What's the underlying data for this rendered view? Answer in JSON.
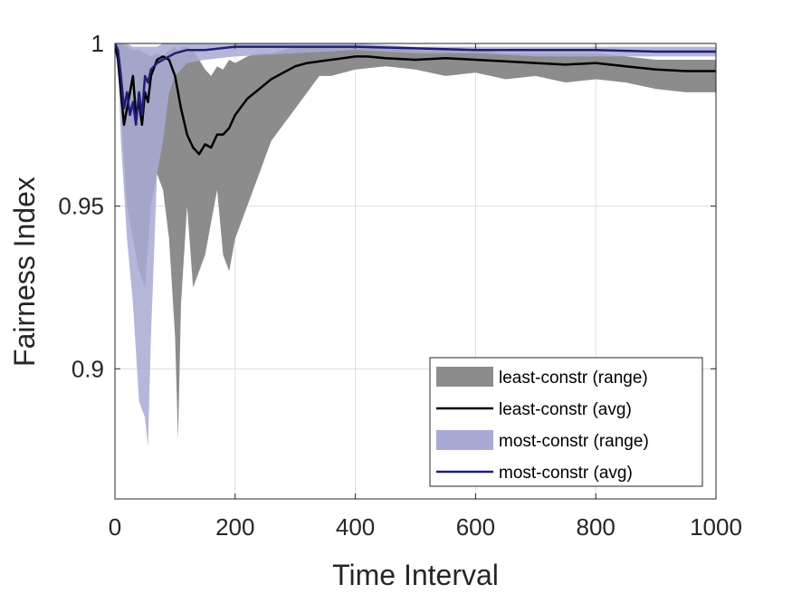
{
  "chart_data": {
    "type": "area",
    "xlabel": "Time Interval",
    "ylabel": "Fairness Index",
    "xlim": [
      0,
      1000
    ],
    "ylim": [
      0.86,
      1.0
    ],
    "xticks": [
      0,
      200,
      400,
      600,
      800,
      1000
    ],
    "xtick_labels": [
      "0",
      "200",
      "400",
      "600",
      "800",
      "1000"
    ],
    "yticks": [
      0.9,
      0.95,
      1.0
    ],
    "ytick_labels": [
      "0.9",
      "0.95",
      "1"
    ],
    "grid": true,
    "legend_position": "bottom-right",
    "series": [
      {
        "name": "least-constr (range)",
        "kind": "range",
        "color": "#8c8c8c",
        "x": [
          0,
          5,
          10,
          20,
          30,
          40,
          50,
          60,
          70,
          80,
          90,
          100,
          105,
          110,
          120,
          130,
          140,
          150,
          160,
          170,
          180,
          190,
          200,
          220,
          240,
          260,
          280,
          300,
          320,
          340,
          360,
          380,
          400,
          450,
          500,
          550,
          600,
          650,
          700,
          750,
          800,
          850,
          900,
          950,
          1000
        ],
        "lower": [
          1.0,
          0.995,
          0.98,
          0.95,
          0.94,
          0.93,
          0.925,
          0.95,
          0.96,
          0.955,
          0.94,
          0.91,
          0.878,
          0.92,
          0.95,
          0.925,
          0.93,
          0.935,
          0.945,
          0.955,
          0.935,
          0.93,
          0.94,
          0.95,
          0.96,
          0.97,
          0.975,
          0.98,
          0.985,
          0.99,
          0.99,
          0.991,
          0.992,
          0.993,
          0.992,
          0.99,
          0.991,
          0.989,
          0.99,
          0.988,
          0.989,
          0.988,
          0.986,
          0.985,
          0.985
        ],
        "upper": [
          1.0,
          1.0,
          1.0,
          0.999,
          0.998,
          0.998,
          0.997,
          0.996,
          0.997,
          0.996,
          0.998,
          0.999,
          0.998,
          0.999,
          0.999,
          0.998,
          0.995,
          0.992,
          0.99,
          0.993,
          0.992,
          0.995,
          0.994,
          0.996,
          0.997,
          0.997,
          0.998,
          0.999,
          0.999,
          0.999,
          0.999,
          0.999,
          0.999,
          0.999,
          0.998,
          0.998,
          0.998,
          0.997,
          0.997,
          0.997,
          0.997,
          0.996,
          0.995,
          0.995,
          0.995
        ]
      },
      {
        "name": "least-constr (avg)",
        "kind": "line",
        "color": "#000000",
        "x": [
          0,
          5,
          10,
          15,
          20,
          25,
          30,
          35,
          40,
          45,
          50,
          55,
          60,
          70,
          80,
          90,
          100,
          110,
          120,
          130,
          140,
          150,
          160,
          170,
          180,
          190,
          200,
          220,
          240,
          260,
          280,
          300,
          320,
          340,
          360,
          380,
          400,
          420,
          450,
          500,
          550,
          600,
          650,
          700,
          750,
          800,
          850,
          900,
          950,
          1000
        ],
        "y": [
          1.0,
          0.995,
          0.985,
          0.975,
          0.98,
          0.985,
          0.99,
          0.978,
          0.982,
          0.975,
          0.985,
          0.982,
          0.99,
          0.995,
          0.996,
          0.995,
          0.99,
          0.98,
          0.972,
          0.968,
          0.966,
          0.969,
          0.968,
          0.972,
          0.972,
          0.974,
          0.978,
          0.983,
          0.986,
          0.989,
          0.991,
          0.993,
          0.994,
          0.9945,
          0.995,
          0.9955,
          0.996,
          0.996,
          0.9955,
          0.995,
          0.9955,
          0.995,
          0.9945,
          0.994,
          0.9935,
          0.994,
          0.993,
          0.992,
          0.9915,
          0.9915
        ]
      },
      {
        "name": "most-constr (range)",
        "kind": "range",
        "color": "#a8aad4",
        "x": [
          0,
          5,
          10,
          20,
          30,
          40,
          50,
          55,
          60,
          70,
          80,
          90,
          100,
          120,
          150,
          200,
          300,
          400,
          500,
          600,
          700,
          800,
          900,
          1000
        ],
        "lower": [
          1.0,
          0.995,
          0.97,
          0.94,
          0.92,
          0.89,
          0.885,
          0.876,
          0.91,
          0.96,
          0.97,
          0.985,
          0.99,
          0.994,
          0.995,
          0.996,
          0.997,
          0.998,
          0.997,
          0.997,
          0.996,
          0.996,
          0.996,
          0.996
        ],
        "upper": [
          1.0,
          1.0,
          1.0,
          1.0,
          0.999,
          0.999,
          0.999,
          0.999,
          0.999,
          0.999,
          1.0,
          1.0,
          1.0,
          1.0,
          1.0,
          1.0,
          1.0,
          1.0,
          0.999,
          0.999,
          0.999,
          0.999,
          0.999,
          0.999
        ]
      },
      {
        "name": "most-constr (avg)",
        "kind": "line",
        "color": "#1f1f75",
        "x": [
          0,
          5,
          10,
          15,
          20,
          25,
          30,
          35,
          40,
          45,
          50,
          55,
          60,
          65,
          70,
          80,
          90,
          100,
          120,
          150,
          200,
          300,
          400,
          500,
          600,
          700,
          800,
          900,
          1000
        ],
        "y": [
          1.0,
          0.998,
          0.99,
          0.98,
          0.985,
          0.978,
          0.982,
          0.975,
          0.985,
          0.978,
          0.99,
          0.988,
          0.992,
          0.993,
          0.994,
          0.995,
          0.996,
          0.997,
          0.998,
          0.998,
          0.999,
          0.999,
          0.999,
          0.9985,
          0.998,
          0.998,
          0.998,
          0.9975,
          0.9975
        ]
      }
    ]
  }
}
